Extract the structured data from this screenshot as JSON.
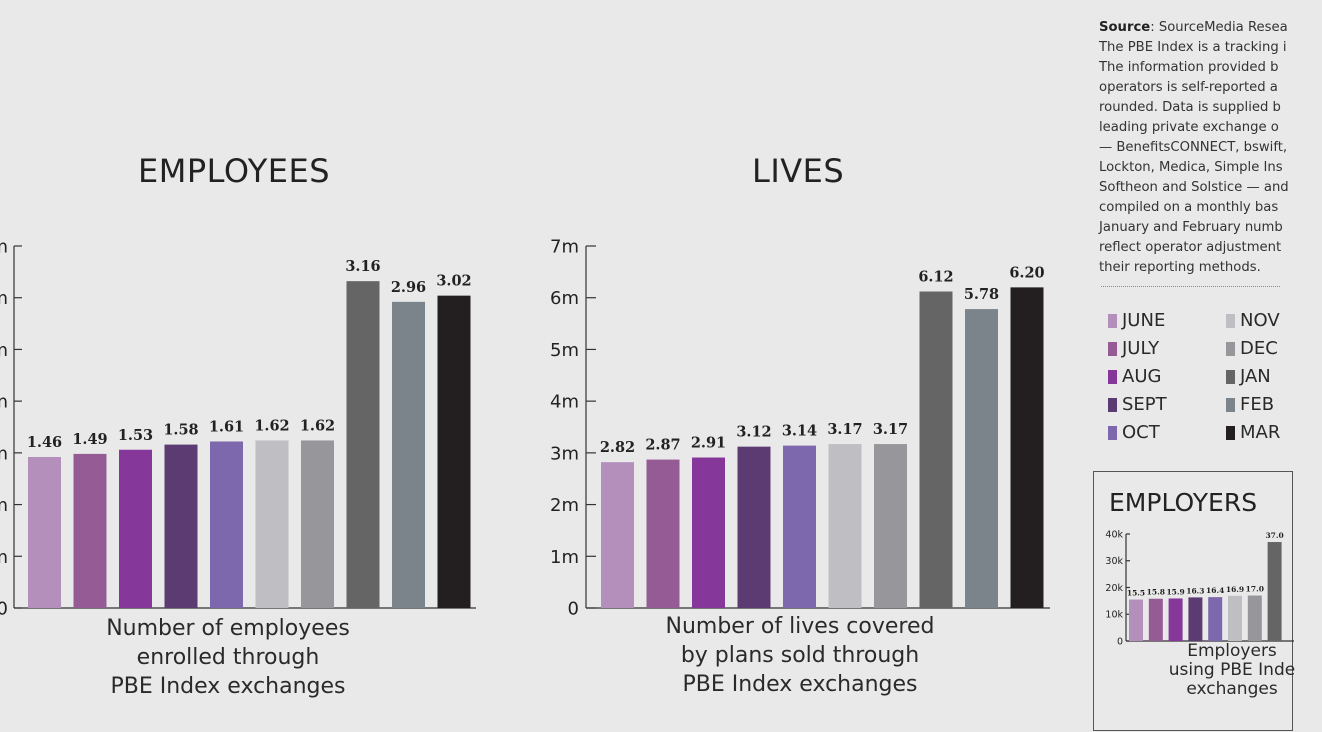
{
  "legend": {
    "months": [
      "JUNE",
      "JULY",
      "AUG",
      "SEPT",
      "OCT",
      "NOV",
      "DEC",
      "JAN",
      "FEB",
      "MAR"
    ],
    "colors": [
      "#b48fbb",
      "#945b94",
      "#86379a",
      "#5c3a72",
      "#7d68ad",
      "#bfbfc3",
      "#97979b",
      "#656565",
      "#7b848b",
      "#231f20"
    ]
  },
  "source": {
    "label": "Source",
    "lines": [
      ": SourceMedia Resea",
      "The PBE Index is a tracking i",
      "The information provided b",
      "operators is self-reported a",
      "rounded. Data is supplied b",
      "leading private exchange o",
      "— BenefitsCONNECT, bswift,",
      "Lockton, Medica, Simple Ins",
      "Softheon and Solstice — and",
      "compiled on a monthly bas",
      "January and February numb",
      "reflect operator adjustment",
      "their reporting methods."
    ]
  },
  "chart_data": [
    {
      "id": "employees",
      "type": "bar",
      "title": "EMPLOYEES",
      "caption": "Number of employees\nenrolled through\nPBE Index exchanges",
      "categories": [
        "JUNE",
        "JULY",
        "AUG",
        "SEPT",
        "OCT",
        "NOV",
        "DEC",
        "JAN",
        "FEB",
        "MAR"
      ],
      "values": [
        1.46,
        1.49,
        1.53,
        1.58,
        1.61,
        1.62,
        1.62,
        3.16,
        2.96,
        3.02
      ],
      "value_labels": [
        "1.46",
        "1.49",
        "1.53",
        "1.58",
        "1.61",
        "1.62",
        "1.62",
        "3.16",
        "2.96",
        "3.02"
      ],
      "ylim": [
        0,
        3.5
      ],
      "yticks": [
        {
          "value": 0,
          "label": "0"
        },
        {
          "value": 0.5,
          "label": "m"
        },
        {
          "value": 1,
          "label": "m"
        },
        {
          "value": 1.5,
          "label": "m"
        },
        {
          "value": 2,
          "label": "m"
        },
        {
          "value": 2.5,
          "label": "m"
        },
        {
          "value": 3,
          "label": "m"
        },
        {
          "value": 3.5,
          "label": "m"
        }
      ]
    },
    {
      "id": "lives",
      "type": "bar",
      "title": "LIVES",
      "caption": "Number of lives covered\nby plans sold through\nPBE Index exchanges",
      "categories": [
        "JUNE",
        "JULY",
        "AUG",
        "SEPT",
        "OCT",
        "NOV",
        "DEC",
        "JAN",
        "FEB",
        "MAR"
      ],
      "values": [
        2.82,
        2.87,
        2.91,
        3.12,
        3.14,
        3.17,
        3.17,
        6.12,
        5.78,
        6.2
      ],
      "value_labels": [
        "2.82",
        "2.87",
        "2.91",
        "3.12",
        "3.14",
        "3.17",
        "3.17",
        "6.12",
        "5.78",
        "6.20"
      ],
      "ylim": [
        0,
        7
      ],
      "yticks": [
        {
          "value": 0,
          "label": "0"
        },
        {
          "value": 1,
          "label": "1m"
        },
        {
          "value": 2,
          "label": "2m"
        },
        {
          "value": 3,
          "label": "3m"
        },
        {
          "value": 4,
          "label": "4m"
        },
        {
          "value": 5,
          "label": "5m"
        },
        {
          "value": 6,
          "label": "6m"
        },
        {
          "value": 7,
          "label": "7m"
        }
      ]
    },
    {
      "id": "employers",
      "type": "bar",
      "title": "EMPLOYERS",
      "caption": "Employers\nusing PBE Inde\nexchanges",
      "categories": [
        "JUNE",
        "JULY",
        "AUG",
        "SEPT",
        "OCT",
        "NOV",
        "DEC",
        "JAN"
      ],
      "values": [
        15.5,
        15.8,
        15.9,
        16.3,
        16.4,
        16.9,
        17.0,
        37.0
      ],
      "value_labels": [
        "15.5",
        "15.8",
        "15.9",
        "16.3",
        "16.4",
        "16.9",
        "17.0",
        "37.0"
      ],
      "ylim": [
        0,
        40
      ],
      "yticks": [
        {
          "value": 0,
          "label": "0"
        },
        {
          "value": 10,
          "label": "10k"
        },
        {
          "value": 20,
          "label": "20k"
        },
        {
          "value": 30,
          "label": "30k"
        },
        {
          "value": 40,
          "label": "40k"
        }
      ]
    }
  ]
}
